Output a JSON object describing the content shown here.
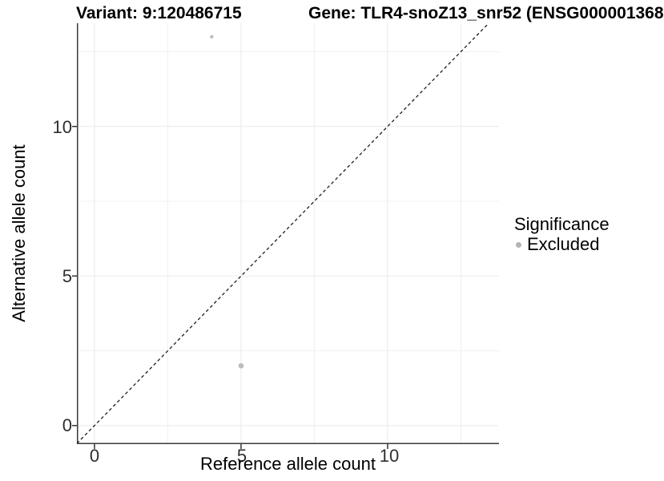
{
  "figure": {
    "title_left": "Variant: 9:120486715",
    "title_right": "Gene: TLR4-snoZ13_snr52 (ENSG000001368"
  },
  "chart_data": {
    "type": "scatter",
    "title_left": "Variant: 9:120486715",
    "title_right": "Gene: TLR4-snoZ13_snr52 (ENSG000001368",
    "axes": {
      "xlabel": "Reference allele count",
      "ylabel": "Alternative allele count",
      "x_ticks": [
        "0",
        "5",
        "10"
      ],
      "y_ticks": [
        "0",
        "5",
        "10"
      ],
      "x_tick_values": [
        0,
        5,
        10
      ],
      "y_tick_values": [
        0,
        5,
        10
      ],
      "x_minor_values": [
        2.5,
        7.5,
        12.5
      ],
      "y_minor_values": [
        2.5,
        7.5,
        12.5
      ],
      "xlim": [
        -0.6,
        13.8
      ],
      "ylim": [
        -0.62,
        13.45
      ],
      "grid": true
    },
    "points": [
      {
        "x": 4,
        "y": 13,
        "r": 2.2,
        "series": "Excluded"
      },
      {
        "x": 5,
        "y": 2,
        "r": 3.3,
        "series": "Excluded"
      }
    ],
    "reference_line": {
      "type": "identity",
      "slope": 1,
      "intercept": 0,
      "style": "dashed"
    },
    "legend": {
      "position": "right",
      "title": "Significance",
      "items": [
        {
          "label": "Excluded",
          "marker_color": "#b4b4b4"
        }
      ]
    },
    "colors": {
      "point": "#bdbdbd",
      "grid_major": "#e9e9e9",
      "grid_minor": "#f0f0f0",
      "axis_line": "#3a3a3a",
      "tick_mark": "#333333",
      "reference_line": "#1f1f1f"
    }
  }
}
